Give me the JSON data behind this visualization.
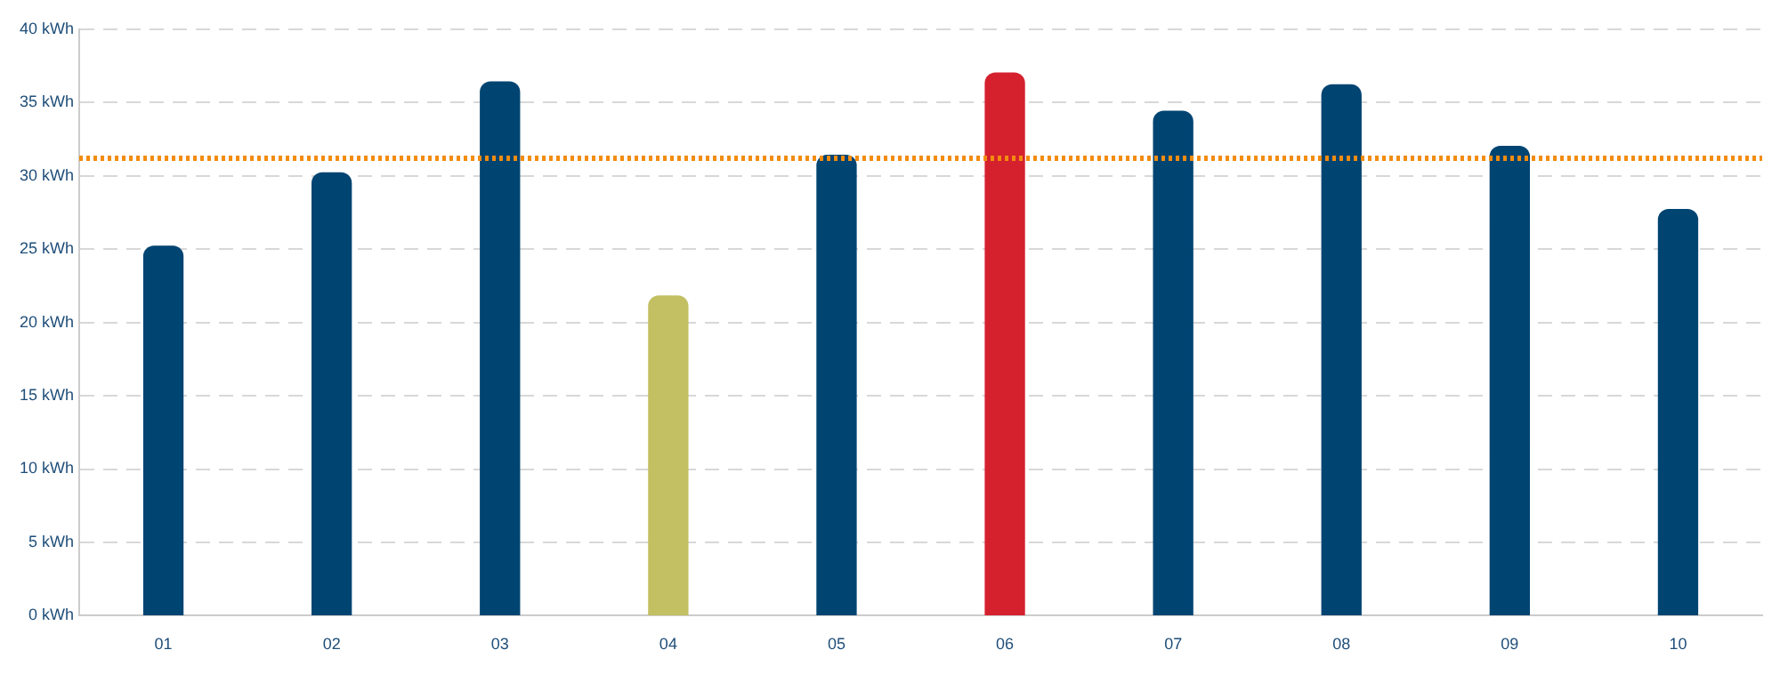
{
  "chart_data": {
    "type": "bar",
    "categories": [
      "01",
      "02",
      "03",
      "04",
      "05",
      "06",
      "07",
      "08",
      "09",
      "10"
    ],
    "values": [
      25.2,
      30.2,
      36.4,
      21.8,
      31.4,
      37.0,
      34.4,
      36.2,
      32.0,
      27.7
    ],
    "colors": [
      "#004472",
      "#004472",
      "#004472",
      "#c2c062",
      "#004472",
      "#d5212e",
      "#004472",
      "#004472",
      "#004472",
      "#004472"
    ],
    "ylim": [
      0,
      40
    ],
    "yticks": [
      {
        "value": 0,
        "label": "0 kWh"
      },
      {
        "value": 5,
        "label": "5 kWh"
      },
      {
        "value": 10,
        "label": "10 kWh"
      },
      {
        "value": 15,
        "label": "15 kWh"
      },
      {
        "value": 20,
        "label": "20 kWh"
      },
      {
        "value": 25,
        "label": "25 kWh"
      },
      {
        "value": 30,
        "label": "30 kWh"
      },
      {
        "value": 35,
        "label": "35 kWh"
      },
      {
        "value": 40,
        "label": "40 kWh"
      }
    ],
    "ref_lines": [
      {
        "axis": "y",
        "value": 31.2,
        "color": "#f28c0f",
        "line_style": "dotted"
      }
    ],
    "grid": "y",
    "legend": false
  }
}
